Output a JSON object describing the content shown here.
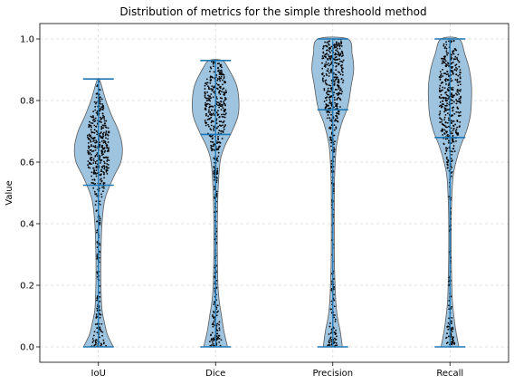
{
  "chart_data": {
    "type": "violin",
    "title": "Distribution of metrics for the simple threshoold method",
    "xlabel": "",
    "ylabel": "Value",
    "ylim": [
      -0.05,
      1.05
    ],
    "y_ticks": [
      "0.0",
      "0.2",
      "0.4",
      "0.6",
      "0.8",
      "1.0"
    ],
    "grid": true,
    "categories": [
      "IoU",
      "Dice",
      "Precision",
      "Recall"
    ],
    "colors": {
      "violin_fill": "#9ec4e0",
      "violin_edge": "#5a5a5a",
      "bar": "#1f77b4",
      "points": "#000000",
      "grid": "#d9d9d9"
    },
    "violins": [
      {
        "name": "IoU",
        "min": 0.0,
        "max": 0.87,
        "median": 0.525,
        "density": [
          [
            0.0,
            0.5
          ],
          [
            0.04,
            0.3
          ],
          [
            0.08,
            0.2
          ],
          [
            0.12,
            0.12
          ],
          [
            0.18,
            0.09
          ],
          [
            0.25,
            0.08
          ],
          [
            0.32,
            0.09
          ],
          [
            0.4,
            0.12
          ],
          [
            0.48,
            0.22
          ],
          [
            0.55,
            0.5
          ],
          [
            0.6,
            0.75
          ],
          [
            0.65,
            0.8
          ],
          [
            0.7,
            0.68
          ],
          [
            0.75,
            0.45
          ],
          [
            0.8,
            0.25
          ],
          [
            0.85,
            0.1
          ],
          [
            0.87,
            0.03
          ]
        ]
      },
      {
        "name": "Dice",
        "min": 0.0,
        "max": 0.93,
        "median": 0.69,
        "density": [
          [
            0.0,
            0.4
          ],
          [
            0.05,
            0.28
          ],
          [
            0.1,
            0.2
          ],
          [
            0.15,
            0.12
          ],
          [
            0.2,
            0.08
          ],
          [
            0.3,
            0.06
          ],
          [
            0.4,
            0.06
          ],
          [
            0.5,
            0.08
          ],
          [
            0.6,
            0.15
          ],
          [
            0.65,
            0.3
          ],
          [
            0.7,
            0.55
          ],
          [
            0.75,
            0.75
          ],
          [
            0.8,
            0.78
          ],
          [
            0.85,
            0.7
          ],
          [
            0.9,
            0.45
          ],
          [
            0.93,
            0.22
          ]
        ]
      },
      {
        "name": "Precision",
        "min": 0.0,
        "max": 1.0,
        "median": 0.77,
        "density": [
          [
            0.0,
            0.32
          ],
          [
            0.05,
            0.25
          ],
          [
            0.1,
            0.15
          ],
          [
            0.15,
            0.1
          ],
          [
            0.25,
            0.06
          ],
          [
            0.35,
            0.05
          ],
          [
            0.45,
            0.05
          ],
          [
            0.55,
            0.06
          ],
          [
            0.65,
            0.12
          ],
          [
            0.72,
            0.28
          ],
          [
            0.78,
            0.5
          ],
          [
            0.85,
            0.62
          ],
          [
            0.9,
            0.7
          ],
          [
            0.95,
            0.65
          ],
          [
            1.0,
            0.5
          ]
        ]
      },
      {
        "name": "Recall",
        "min": 0.0,
        "max": 1.0,
        "median": 0.68,
        "density": [
          [
            0.0,
            0.3
          ],
          [
            0.05,
            0.2
          ],
          [
            0.1,
            0.13
          ],
          [
            0.15,
            0.08
          ],
          [
            0.25,
            0.05
          ],
          [
            0.35,
            0.04
          ],
          [
            0.45,
            0.05
          ],
          [
            0.55,
            0.1
          ],
          [
            0.6,
            0.2
          ],
          [
            0.65,
            0.35
          ],
          [
            0.7,
            0.55
          ],
          [
            0.75,
            0.68
          ],
          [
            0.8,
            0.72
          ],
          [
            0.85,
            0.72
          ],
          [
            0.9,
            0.65
          ],
          [
            0.95,
            0.5
          ],
          [
            1.0,
            0.3
          ]
        ]
      }
    ]
  }
}
